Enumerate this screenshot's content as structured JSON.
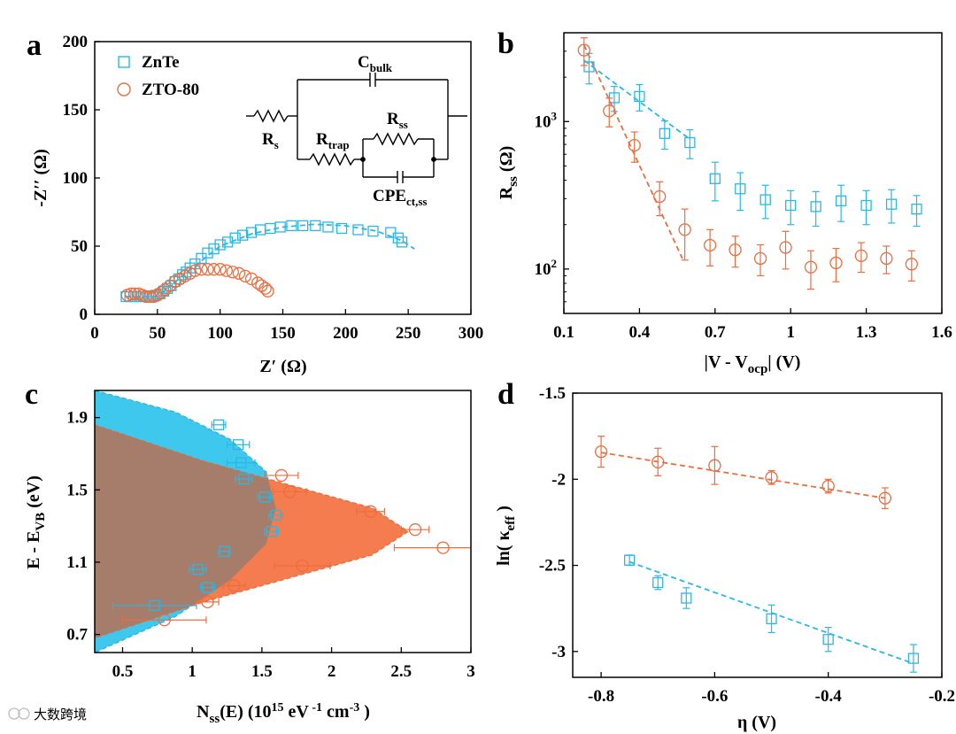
{
  "colors": {
    "blue": "#29b8e6",
    "orange": "#ef6c3e",
    "blue_fill": "#3fc8ee",
    "orange_fill": "#f47c4e",
    "overlap_fill": "#a57d6a"
  },
  "watermark": "大数跨境",
  "chart_data": [
    {
      "panel": "a",
      "type": "scatter",
      "xlabel": "Z′ (Ω)",
      "ylabel": "-Z′′ (Ω)",
      "xlim": [
        0,
        300
      ],
      "ylim": [
        0,
        200
      ],
      "xticks": [
        0,
        50,
        100,
        150,
        200,
        250,
        300
      ],
      "yticks": [
        0,
        50,
        100,
        150,
        200
      ],
      "legend_position": "top-left",
      "series": [
        {
          "name": "ZnTe",
          "marker": "square",
          "color": "#29b8e6",
          "x": [
            25,
            28,
            31,
            34,
            37,
            40,
            43,
            46,
            49,
            52,
            55,
            58,
            61,
            64,
            67,
            70,
            73,
            76,
            80,
            85,
            90,
            95,
            100,
            106,
            112,
            118,
            125,
            132,
            140,
            148,
            157,
            166,
            176,
            186,
            197,
            210,
            222,
            236,
            242,
            245
          ],
          "y": [
            13,
            13,
            13,
            13,
            13,
            13,
            13,
            13,
            14,
            15,
            17,
            19,
            21,
            24,
            26,
            29,
            31,
            34,
            37,
            41,
            45,
            48,
            51,
            53,
            56,
            58,
            60,
            62,
            63,
            64,
            65,
            65,
            65,
            64,
            63,
            62,
            61,
            60,
            56,
            53
          ],
          "fit": {
            "style": "dashed",
            "x": [
              25,
              50,
              75,
              100,
              125,
              150,
              175,
              200,
              225,
              245,
              255
            ],
            "y": [
              13,
              13,
              32,
              50,
              59,
              64,
              66,
              65,
              61,
              54,
              48
            ]
          }
        },
        {
          "name": "ZTO-80",
          "marker": "circle",
          "color": "#ef6c3e",
          "x": [
            26,
            29,
            32,
            35,
            38,
            41,
            44,
            47,
            50,
            53,
            56,
            60,
            64,
            68,
            72,
            76,
            80,
            85,
            90,
            95,
            100,
            105,
            110,
            115,
            120,
            125,
            130,
            133,
            136,
            138
          ],
          "y": [
            14,
            15,
            15,
            15,
            14,
            13,
            13,
            13,
            14,
            16,
            18,
            21,
            24,
            26,
            28,
            30,
            32,
            33,
            33,
            33,
            33,
            32,
            31,
            30,
            28,
            26,
            23,
            21,
            19,
            17
          ]
        }
      ],
      "inset_labels": {
        "c_bulk": "C",
        "c_bulk_sub": "bulk",
        "r_s": "R",
        "r_s_sub": "s",
        "r_trap": "R",
        "r_trap_sub": "trap",
        "r_ss": "R",
        "r_ss_sub": "ss",
        "cpe": "CPE",
        "cpe_sub": "ct,ss"
      }
    },
    {
      "panel": "b",
      "type": "scatter",
      "xlabel": "|V - V",
      "xlabel_sub": "ocp",
      "xlabel_end": "| (V)",
      "ylabel": "R",
      "ylabel_sub": "ss",
      "ylabel_end": " (Ω)",
      "xlim": [
        0.1,
        1.6
      ],
      "ylim": [
        50,
        4000
      ],
      "yscale": "log",
      "xticks": [
        0.1,
        0.4,
        0.7,
        1,
        1.3,
        1.6
      ],
      "yticks": [
        {
          "value": 100,
          "base": "10",
          "exp": "2"
        },
        {
          "value": 1000,
          "base": "10",
          "exp": "3"
        }
      ],
      "series": [
        {
          "name": "ZnTe",
          "marker": "square",
          "color": "#29b8e6",
          "x": [
            0.2,
            0.3,
            0.4,
            0.5,
            0.6,
            0.7,
            0.8,
            0.9,
            1.0,
            1.1,
            1.2,
            1.3,
            1.4,
            1.5
          ],
          "y": [
            2350,
            1450,
            1480,
            830,
            720,
            410,
            350,
            295,
            270,
            265,
            290,
            270,
            275,
            255
          ],
          "err": [
            550,
            280,
            300,
            180,
            160,
            120,
            100,
            75,
            70,
            70,
            80,
            70,
            70,
            60
          ],
          "fit": {
            "style": "dashed",
            "x": [
              0.18,
              0.6
            ],
            "y": [
              2600,
              760
            ]
          }
        },
        {
          "name": "ZTO-80",
          "marker": "circle",
          "color": "#ef6c3e",
          "x": [
            0.18,
            0.28,
            0.38,
            0.48,
            0.58,
            0.68,
            0.78,
            0.88,
            0.98,
            1.08,
            1.18,
            1.28,
            1.38,
            1.48
          ],
          "y": [
            3050,
            1180,
            690,
            310,
            185,
            145,
            135,
            118,
            140,
            103,
            110,
            123,
            118,
            108
          ],
          "err": [
            650,
            260,
            160,
            80,
            70,
            40,
            32,
            28,
            40,
            30,
            28,
            28,
            25,
            25
          ],
          "fit": {
            "style": "dashed",
            "x": [
              0.18,
              0.57
            ],
            "y": [
              3300,
              118
            ]
          }
        }
      ]
    },
    {
      "panel": "c",
      "type": "scatter",
      "xlabel": "N",
      "xlabel_sub": "ss",
      "xlabel_end": "(E) (10",
      "xlabel_sup": "15",
      "xlabel_tail": " eV",
      "xlabel_sup2": " -1",
      "xlabel_tail2": " cm",
      "xlabel_sup3": "-3",
      "xlabel_tail3": " )",
      "ylabel": "E - E",
      "ylabel_sub": "VB",
      "ylabel_end": " (eV)",
      "xlim": [
        0.3,
        3.0
      ],
      "ylim": [
        0.6,
        2.05
      ],
      "xticks": [
        0.5,
        1,
        1.5,
        2,
        2.5,
        3
      ],
      "yticks": [
        0.7,
        1.1,
        1.5,
        1.9
      ],
      "series": [
        {
          "name": "ZnTe",
          "marker": "square",
          "color": "#29b8e6",
          "x": [
            1.19,
            1.33,
            1.35,
            1.37,
            1.52,
            1.57,
            1.6,
            1.23,
            1.04,
            1.11,
            0.73
          ],
          "y": [
            1.86,
            1.75,
            1.65,
            1.56,
            1.46,
            1.27,
            1.36,
            1.16,
            1.06,
            0.96,
            0.86
          ],
          "xerr": [
            0.05,
            0.08,
            0.1,
            0.06,
            0.05,
            0.05,
            0.05,
            0.04,
            0.06,
            0.05,
            0.3
          ]
        },
        {
          "name": "ZTO-80",
          "marker": "circle",
          "color": "#ef6c3e",
          "x": [
            1.64,
            1.7,
            2.28,
            2.6,
            2.8,
            1.79,
            1.3,
            1.11,
            0.8
          ],
          "y": [
            1.58,
            1.49,
            1.38,
            1.28,
            1.18,
            1.08,
            0.97,
            0.88,
            0.78
          ],
          "xerr": [
            0.12,
            0.12,
            0.1,
            0.1,
            0.35,
            0.2,
            0.08,
            0.08,
            0.3
          ]
        }
      ],
      "distributions": {
        "ZnTe": {
          "x": [
            0.3,
            0.88,
            1.27,
            1.53,
            1.6,
            1.53,
            1.27,
            0.88,
            0.3
          ],
          "y": [
            2.05,
            1.93,
            1.78,
            1.6,
            1.4,
            1.2,
            1.0,
            0.8,
            0.6
          ]
        },
        "ZTO-80": {
          "x": [
            0.3,
            1.08,
            1.73,
            2.29,
            2.55,
            2.29,
            1.73,
            1.08,
            0.3
          ],
          "y": [
            1.86,
            1.66,
            1.52,
            1.4,
            1.27,
            1.14,
            1.02,
            0.88,
            0.68
          ]
        }
      }
    },
    {
      "panel": "d",
      "type": "scatter",
      "xlabel": "η (V)",
      "ylabel": "ln( κ",
      "ylabel_sub": "eff",
      "ylabel_end": " )",
      "xlim": [
        -0.85,
        -0.2
      ],
      "ylim": [
        -3.15,
        -1.5
      ],
      "xticks": [
        -0.8,
        -0.6,
        -0.4,
        -0.2
      ],
      "yticks": [
        -1.5,
        -2,
        -2.5,
        -3
      ],
      "series": [
        {
          "name": "ZTO-80",
          "marker": "circle",
          "color": "#ef6c3e",
          "x": [
            -0.8,
            -0.7,
            -0.6,
            -0.5,
            -0.4,
            -0.3
          ],
          "y": [
            -1.84,
            -1.9,
            -1.92,
            -1.99,
            -2.04,
            -2.11
          ],
          "err": [
            0.09,
            0.08,
            0.11,
            0.04,
            0.04,
            0.06
          ],
          "fit": {
            "style": "dashed",
            "x": [
              -0.8,
              -0.3
            ],
            "y": [
              -1.845,
              -2.11
            ]
          }
        },
        {
          "name": "ZnTe",
          "marker": "square",
          "color": "#29b8e6",
          "x": [
            -0.75,
            -0.7,
            -0.65,
            -0.5,
            -0.4,
            -0.25
          ],
          "y": [
            -2.47,
            -2.6,
            -2.69,
            -2.81,
            -2.93,
            -3.04
          ],
          "err": [
            0.03,
            0.04,
            0.06,
            0.08,
            0.07,
            0.08
          ],
          "fit": {
            "style": "dashed",
            "x": [
              -0.75,
              -0.25
            ],
            "y": [
              -2.48,
              -3.07
            ]
          }
        }
      ]
    }
  ]
}
